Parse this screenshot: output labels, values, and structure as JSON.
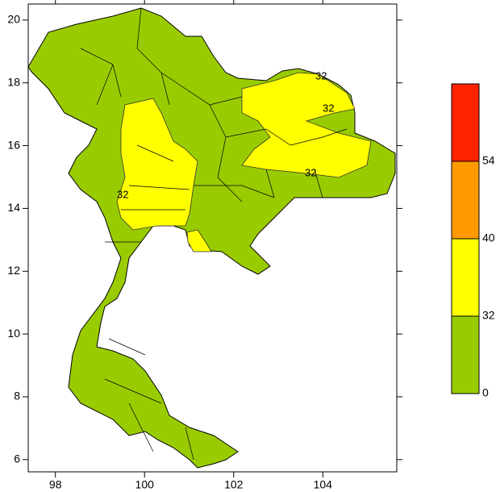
{
  "map": {
    "xlim": [
      97.39,
      105.66
    ],
    "ylim": [
      5.61,
      20.51
    ],
    "xticks": [
      98,
      100,
      102,
      104
    ],
    "yticks": [
      6,
      8,
      10,
      12,
      14,
      16,
      18,
      20
    ],
    "contour_labels": [
      "32",
      "32",
      "32",
      "32"
    ]
  },
  "colorbar": {
    "ticks": [
      0,
      32,
      40,
      54
    ],
    "colors": [
      "#99cc00",
      "#ffff00",
      "#ff9900",
      "#ff2200"
    ]
  }
}
